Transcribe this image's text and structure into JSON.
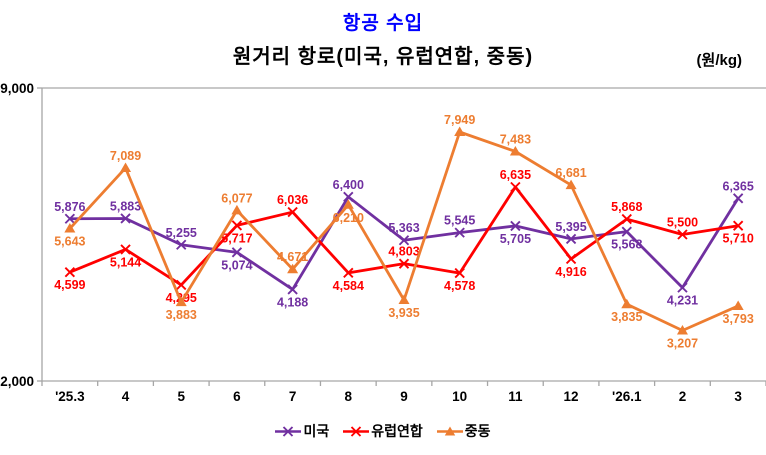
{
  "header": {
    "title": "항공  수입",
    "title_color": "#0000FF",
    "subtitle": "원거리  항로(미국,  유럽연합,  중동)",
    "unit": "(원/kg)"
  },
  "chart_data": {
    "type": "line",
    "title": "항공 수입",
    "subtitle": "원거리 항로(미국, 유럽연합, 중동)",
    "unit": "원/kg",
    "categories": [
      "'25.3",
      "4",
      "5",
      "6",
      "7",
      "8",
      "9",
      "10",
      "11",
      "12",
      "'26.1",
      "2",
      "3"
    ],
    "series": [
      {
        "name": "미국",
        "key": "usa",
        "color": "#7030A0",
        "marker": "x",
        "values": [
          5876,
          5883,
          5255,
          5074,
          4188,
          6400,
          5363,
          5545,
          5705,
          5395,
          5568,
          4231,
          6365
        ],
        "label_side": [
          "above",
          "above",
          "above",
          "below",
          "below",
          "above",
          "above",
          "above",
          "below",
          "above",
          "below",
          "below",
          "above"
        ]
      },
      {
        "name": "유럽연합",
        "key": "eu",
        "color": "#FF0000",
        "marker": "x",
        "values": [
          4599,
          5144,
          4295,
          5717,
          6036,
          4584,
          4803,
          4578,
          6635,
          4916,
          5868,
          5500,
          5710
        ],
        "label_side": [
          "below",
          "below",
          "below",
          "below",
          "above",
          "below",
          "above",
          "below",
          "above",
          "below",
          "above",
          "above",
          "below"
        ]
      },
      {
        "name": "중동",
        "key": "middle-east",
        "color": "#ED7D31",
        "marker": "triangle",
        "values": [
          5643,
          7089,
          3883,
          6077,
          4671,
          6210,
          3935,
          7949,
          7483,
          6681,
          3835,
          3207,
          3793
        ],
        "label_side": [
          "below",
          "above",
          "below",
          "above",
          "above",
          "below",
          "below",
          "above",
          "above",
          "above",
          "below",
          "below",
          "below"
        ]
      }
    ],
    "ylim": [
      2000,
      9000
    ],
    "y_tick_labels": [
      "9,000",
      "2,000"
    ],
    "axis_color": "#A6A6A6",
    "grid": "top-border-only",
    "legend_position": "bottom"
  }
}
